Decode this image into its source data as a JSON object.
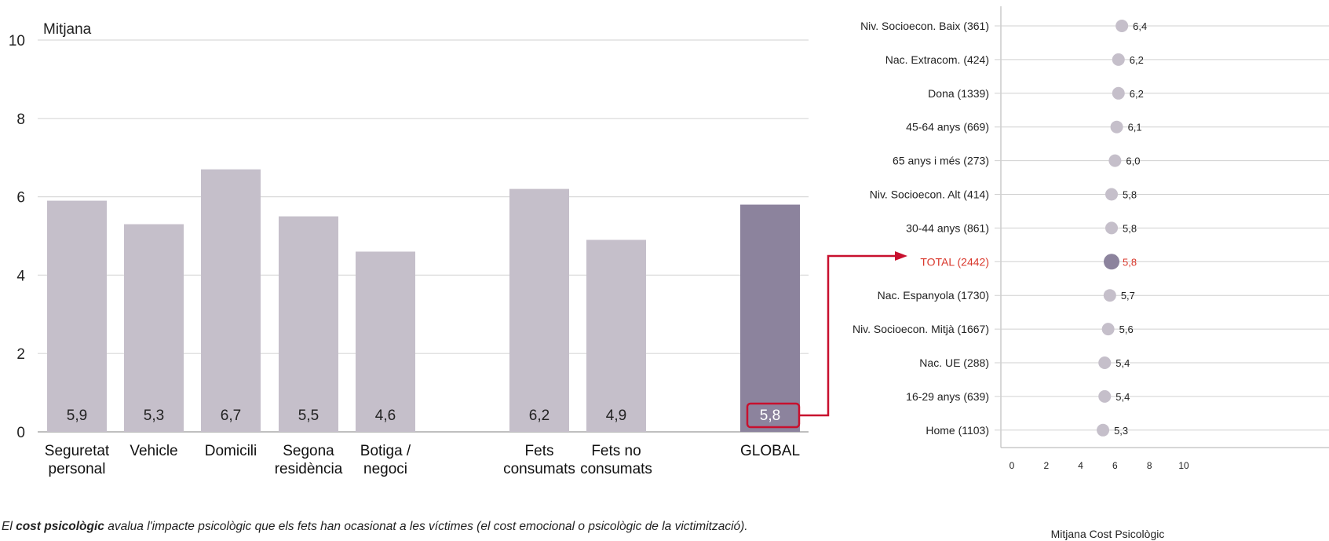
{
  "chart_data": [
    {
      "type": "bar",
      "ylabel": "Mitjana",
      "ylim": [
        0,
        10
      ],
      "yticks": [
        0,
        2,
        4,
        6,
        8,
        10
      ],
      "grid": true,
      "categories": [
        {
          "label": [
            "Seguretat",
            "personal"
          ],
          "value": 5.9,
          "value_label": "5,9",
          "highlight": false
        },
        {
          "label": [
            "Vehicle"
          ],
          "value": 5.3,
          "value_label": "5,3",
          "highlight": false
        },
        {
          "label": [
            "Domicili"
          ],
          "value": 6.7,
          "value_label": "6,7",
          "highlight": false
        },
        {
          "label": [
            "Segona",
            "residència"
          ],
          "value": 5.5,
          "value_label": "5,5",
          "highlight": false
        },
        {
          "label": [
            "Botiga /",
            "negoci"
          ],
          "value": 4.6,
          "value_label": "4,6",
          "highlight": false
        },
        {
          "label": [
            "Fets",
            "consumats"
          ],
          "value": 6.2,
          "value_label": "6,2",
          "highlight": false
        },
        {
          "label": [
            "Fets no",
            "consumats"
          ],
          "value": 4.9,
          "value_label": "4,9",
          "highlight": false
        },
        {
          "label": [
            "GLOBAL"
          ],
          "value": 5.8,
          "value_label": "5,8",
          "highlight": true
        }
      ],
      "colors": {
        "bar": "#c5bfca",
        "highlight_bar": "#8c839d",
        "callout": "#c8102e"
      }
    },
    {
      "type": "scatter",
      "orientation": "horizontal-dot",
      "xlabel": "Mitjana Cost Psicològic",
      "xlim": [
        0,
        10
      ],
      "xticks": [
        "0",
        "2",
        "4",
        "6",
        "8",
        "10"
      ],
      "points": [
        {
          "label": "Niv. Socioecon. Baix (361)",
          "value": 6.4,
          "value_label": "6,4",
          "highlight": false
        },
        {
          "label": "Nac. Extracom. (424)",
          "value": 6.2,
          "value_label": "6,2",
          "highlight": false
        },
        {
          "label": "Dona (1339)",
          "value": 6.2,
          "value_label": "6,2",
          "highlight": false
        },
        {
          "label": "45-64 anys (669)",
          "value": 6.1,
          "value_label": "6,1",
          "highlight": false
        },
        {
          "label": "65 anys i més (273)",
          "value": 6.0,
          "value_label": "6,0",
          "highlight": false
        },
        {
          "label": "Niv. Socioecon. Alt (414)",
          "value": 5.8,
          "value_label": "5,8",
          "highlight": false
        },
        {
          "label": "30-44 anys (861)",
          "value": 5.8,
          "value_label": "5,8",
          "highlight": false
        },
        {
          "label": "TOTAL (2442)",
          "value": 5.8,
          "value_label": "5,8",
          "highlight": true
        },
        {
          "label": "Nac. Espanyola (1730)",
          "value": 5.7,
          "value_label": "5,7",
          "highlight": false
        },
        {
          "label": "Niv. Socioecon. Mitjà (1667)",
          "value": 5.6,
          "value_label": "5,6",
          "highlight": false
        },
        {
          "label": "Nac. UE (288)",
          "value": 5.4,
          "value_label": "5,4",
          "highlight": false
        },
        {
          "label": "16-29 anys (639)",
          "value": 5.4,
          "value_label": "5,4",
          "highlight": false
        },
        {
          "label": "Home (1103)",
          "value": 5.3,
          "value_label": "5,3",
          "highlight": false
        }
      ],
      "colors": {
        "dot": "#c5bfca",
        "highlight_dot": "#8c839d",
        "highlight_text": "#d9372b"
      }
    }
  ],
  "caption": {
    "prefix": "El ",
    "bold": "cost  psicològic",
    "rest": " avalua l'impacte psicològic que els fets han ocasionat a les víctimes (el cost emocional o psicològic de la victimització)."
  }
}
